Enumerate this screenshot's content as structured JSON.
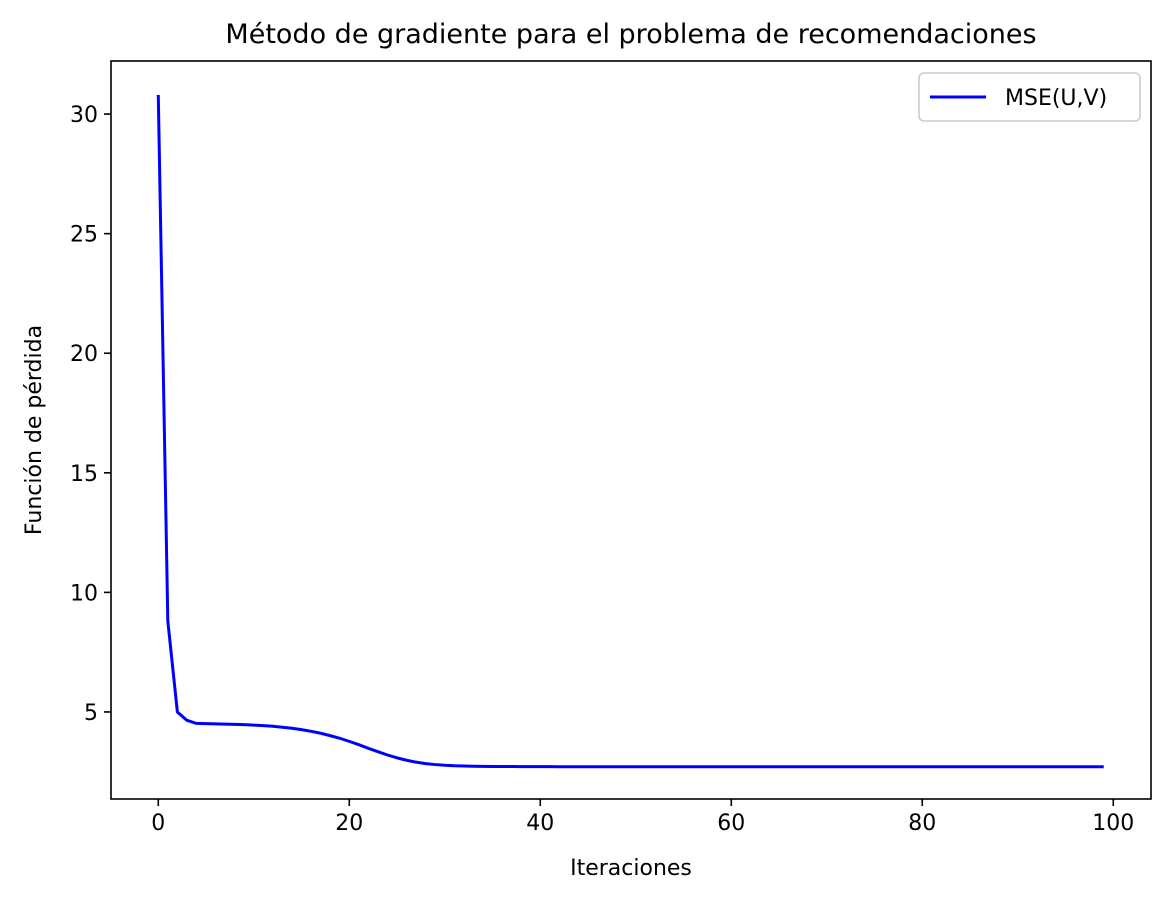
{
  "chart_data": {
    "type": "line",
    "title": "Método de gradiente para el problema de recomendaciones",
    "xlabel": "Iteraciones",
    "ylabel": "Función de pérdida",
    "xlim": [
      -4.95,
      103.95
    ],
    "ylim": [
      1.36,
      32.22
    ],
    "xticks": [
      0,
      20,
      40,
      60,
      80,
      100
    ],
    "yticks": [
      5,
      10,
      15,
      20,
      25,
      30
    ],
    "grid": false,
    "legend_position": "top-right",
    "series": [
      {
        "name": "MSE(U,V)",
        "color": "#0000ff",
        "x": [
          0,
          1,
          2,
          3,
          4,
          5,
          6,
          7,
          8,
          9,
          10,
          11,
          12,
          13,
          14,
          15,
          16,
          17,
          18,
          19,
          20,
          21,
          22,
          23,
          24,
          25,
          26,
          27,
          28,
          29,
          30,
          31,
          32,
          33,
          34,
          35,
          36,
          37,
          38,
          39,
          40,
          41,
          42,
          43,
          44,
          45,
          46,
          47,
          48,
          49,
          50,
          51,
          52,
          53,
          54,
          55,
          56,
          57,
          58,
          59,
          60,
          61,
          62,
          63,
          64,
          65,
          66,
          67,
          68,
          69,
          70,
          71,
          72,
          73,
          74,
          75,
          76,
          77,
          78,
          79,
          80,
          81,
          82,
          83,
          84,
          85,
          86,
          87,
          88,
          89,
          90,
          91,
          92,
          93,
          94,
          95,
          96,
          97,
          98,
          99
        ],
        "y": [
          30.8,
          8.8,
          5.0,
          4.65,
          4.52,
          4.51,
          4.5,
          4.49,
          4.48,
          4.47,
          4.45,
          4.43,
          4.4,
          4.36,
          4.32,
          4.26,
          4.19,
          4.11,
          4.01,
          3.9,
          3.77,
          3.63,
          3.48,
          3.34,
          3.2,
          3.08,
          2.98,
          2.9,
          2.84,
          2.8,
          2.77,
          2.75,
          2.74,
          2.73,
          2.725,
          2.72,
          2.72,
          2.72,
          2.715,
          2.715,
          2.715,
          2.715,
          2.71,
          2.71,
          2.71,
          2.71,
          2.71,
          2.71,
          2.71,
          2.71,
          2.71,
          2.71,
          2.71,
          2.71,
          2.71,
          2.71,
          2.71,
          2.71,
          2.71,
          2.71,
          2.71,
          2.71,
          2.71,
          2.71,
          2.71,
          2.71,
          2.71,
          2.71,
          2.71,
          2.71,
          2.71,
          2.71,
          2.71,
          2.71,
          2.71,
          2.71,
          2.71,
          2.71,
          2.71,
          2.71,
          2.71,
          2.71,
          2.71,
          2.71,
          2.71,
          2.71,
          2.71,
          2.71,
          2.71,
          2.71,
          2.71,
          2.71,
          2.71,
          2.71,
          2.71,
          2.71,
          2.71,
          2.71,
          2.71,
          2.71
        ]
      }
    ]
  }
}
